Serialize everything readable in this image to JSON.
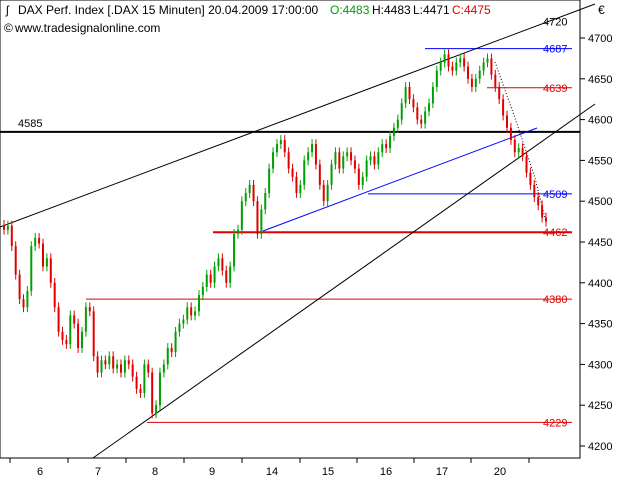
{
  "header": {
    "title": "DAX Perf. Index [.DAX  15 Minuten] 20.04.2009 17:00:00",
    "open": "O:4483",
    "high": "H:4483",
    "low": "L:4471",
    "close": "C:4475",
    "source": "www.tradesignalonline.com",
    "currency": "€"
  },
  "colors": {
    "up": "#00a000",
    "down": "#e00000",
    "axis": "#000000",
    "blue_line": "#0000ff",
    "red_line": "#e00000"
  },
  "chart_data": {
    "type": "candlestick",
    "ylim": [
      4180,
      4760
    ],
    "y_ticks": [
      4200,
      4250,
      4300,
      4350,
      4400,
      4450,
      4500,
      4550,
      4600,
      4650,
      4700
    ],
    "x_ticks": [
      "6",
      "7",
      "8",
      "9",
      "14",
      "15",
      "16",
      "17",
      "20"
    ],
    "levels": [
      {
        "label": "4720",
        "value": 4720,
        "color": "black",
        "line": false
      },
      {
        "label": "4687",
        "value": 4687,
        "color": "blue"
      },
      {
        "label": "4639",
        "value": 4639,
        "color": "red"
      },
      {
        "label": "4585",
        "value": 4585,
        "color": "black",
        "side": "left"
      },
      {
        "label": "4509",
        "value": 4509,
        "color": "blue"
      },
      {
        "label": "4462",
        "value": 4462,
        "color": "red"
      },
      {
        "label": "4380",
        "value": 4380,
        "color": "red"
      },
      {
        "label": "4229",
        "value": 4229,
        "color": "red"
      }
    ],
    "price_path": [
      4465,
      4470,
      4445,
      4410,
      4380,
      4370,
      4390,
      4445,
      4455,
      4448,
      4420,
      4430,
      4400,
      4370,
      4340,
      4330,
      4325,
      4360,
      4350,
      4320,
      4340,
      4370,
      4365,
      4310,
      4290,
      4305,
      4300,
      4310,
      4295,
      4300,
      4290,
      4305,
      4300,
      4285,
      4270,
      4265,
      4300,
      4290,
      4240,
      4250,
      4290,
      4300,
      4320,
      4315,
      4340,
      4350,
      4355,
      4370,
      4360,
      4365,
      4385,
      4395,
      4410,
      4400,
      4420,
      4430,
      4415,
      4400,
      4420,
      4460,
      4465,
      4500,
      4510,
      4520,
      4500,
      4460,
      4490,
      4510,
      4540,
      4560,
      4570,
      4575,
      4560,
      4540,
      4530,
      4510,
      4520,
      4550,
      4560,
      4570,
      4545,
      4520,
      4500,
      4520,
      4545,
      4560,
      4540,
      4555,
      4560,
      4550,
      4540,
      4520,
      4530,
      4550,
      4555,
      4545,
      4560,
      4570,
      4565,
      4580,
      4590,
      4600,
      4620,
      4640,
      4625,
      4615,
      4600,
      4595,
      4610,
      4620,
      4640,
      4660,
      4670,
      4680,
      4665,
      4660,
      4670,
      4675,
      4665,
      4650,
      4640,
      4650,
      4660,
      4670,
      4675,
      4655,
      4640,
      4625,
      4605,
      4590,
      4575,
      4560,
      4565,
      4555,
      4535,
      4520,
      4505,
      4495,
      4480,
      4475
    ]
  }
}
